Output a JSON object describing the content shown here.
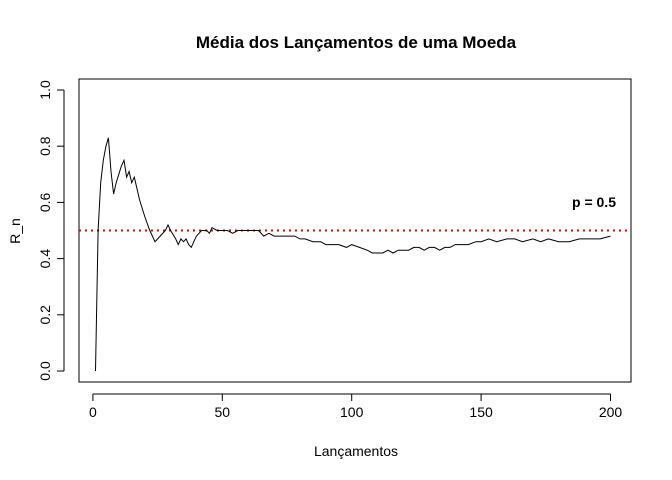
{
  "chart_data": {
    "type": "line",
    "title": "Média dos Lançamentos de uma Moeda",
    "xlabel": "Lançamentos",
    "ylabel": "R_n",
    "xlim": [
      1,
      200
    ],
    "ylim": [
      0,
      1
    ],
    "x_ticks": [
      0,
      50,
      100,
      150,
      200
    ],
    "y_ticks": [
      0.0,
      0.2,
      0.4,
      0.6,
      0.8,
      1.0
    ],
    "y_tick_labels": [
      "0.0",
      "0.2",
      "0.4",
      "0.6",
      "0.8",
      "1.0"
    ],
    "grid": false,
    "reference_line": {
      "y": 0.5,
      "color": "#e00000",
      "style": "dotted",
      "label": "p = 0.5"
    },
    "series": [
      {
        "color": "#000000",
        "x": [
          1,
          2,
          3,
          4,
          5,
          6,
          7,
          8,
          9,
          10,
          11,
          12,
          13,
          14,
          15,
          16,
          17,
          18,
          19,
          20,
          22,
          24,
          26,
          28,
          29,
          30,
          32,
          33,
          34,
          35,
          36,
          37,
          38,
          39,
          40,
          42,
          44,
          45,
          46,
          48,
          50,
          52,
          54,
          56,
          58,
          60,
          62,
          64,
          66,
          68,
          70,
          72,
          75,
          78,
          80,
          82,
          85,
          88,
          90,
          92,
          95,
          98,
          100,
          103,
          106,
          108,
          110,
          112,
          114,
          116,
          118,
          120,
          122,
          124,
          126,
          128,
          130,
          132,
          134,
          136,
          138,
          140,
          142,
          145,
          148,
          150,
          153,
          156,
          160,
          163,
          166,
          170,
          173,
          176,
          180,
          184,
          188,
          192,
          196,
          200
        ],
        "y": [
          0.0,
          0.5,
          0.67,
          0.75,
          0.8,
          0.83,
          0.71,
          0.63,
          0.67,
          0.7,
          0.73,
          0.75,
          0.69,
          0.71,
          0.67,
          0.69,
          0.65,
          0.61,
          0.58,
          0.55,
          0.5,
          0.46,
          0.48,
          0.5,
          0.52,
          0.5,
          0.47,
          0.45,
          0.47,
          0.46,
          0.47,
          0.45,
          0.44,
          0.46,
          0.48,
          0.5,
          0.5,
          0.49,
          0.51,
          0.5,
          0.5,
          0.5,
          0.49,
          0.5,
          0.5,
          0.5,
          0.5,
          0.5,
          0.48,
          0.49,
          0.48,
          0.48,
          0.48,
          0.48,
          0.47,
          0.47,
          0.46,
          0.46,
          0.45,
          0.45,
          0.45,
          0.44,
          0.45,
          0.44,
          0.43,
          0.42,
          0.42,
          0.42,
          0.43,
          0.42,
          0.43,
          0.43,
          0.43,
          0.44,
          0.44,
          0.43,
          0.44,
          0.44,
          0.43,
          0.44,
          0.44,
          0.45,
          0.45,
          0.45,
          0.46,
          0.46,
          0.47,
          0.46,
          0.47,
          0.47,
          0.46,
          0.47,
          0.46,
          0.47,
          0.46,
          0.46,
          0.47,
          0.47,
          0.47,
          0.48
        ]
      }
    ]
  }
}
